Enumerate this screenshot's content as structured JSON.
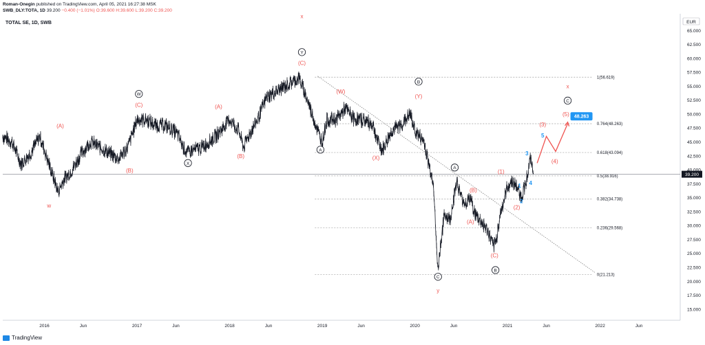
{
  "header": {
    "author": "Roman-Onegin",
    "published": "published on TradingView.com, April 05, 2021 16:27:38 MSK",
    "symbol_line": "SWB_DLY:TOTA, 1D",
    "last": "39.200",
    "change": "−0.400 (−1.01%)",
    "ohlc": "O:39.600 H:39.600 L:39.200 C:39.200"
  },
  "chart_title": "TOTAL SE, 1D, SWB",
  "logo_text": "TradingView",
  "chart_data": {
    "type": "line",
    "title": "TOTAL SE, 1D, SWB",
    "currency": "EUR",
    "last_price_label": "39.200",
    "last_price": 39.2,
    "y_range": [
      13.5,
      67.5
    ],
    "y_ticks": [
      "15.000",
      "17.500",
      "20.000",
      "22.500",
      "25.000",
      "27.500",
      "30.000",
      "32.500",
      "35.000",
      "37.500",
      "40.000",
      "42.500",
      "45.000",
      "47.500",
      "50.000",
      "52.500",
      "55.000",
      "57.500",
      "60.000",
      "62.500",
      "65.000"
    ],
    "x_range": [
      2015.55,
      2022.85
    ],
    "x_ticks": [
      {
        "label": "2016",
        "t": 2016.0
      },
      {
        "label": "Jun",
        "t": 2016.42
      },
      {
        "label": "2017",
        "t": 2017.0
      },
      {
        "label": "Jun",
        "t": 2017.42
      },
      {
        "label": "2018",
        "t": 2018.0
      },
      {
        "label": "Jun",
        "t": 2018.42
      },
      {
        "label": "2019",
        "t": 2019.0
      },
      {
        "label": "Jun",
        "t": 2019.42
      },
      {
        "label": "2020",
        "t": 2020.0
      },
      {
        "label": "Jun",
        "t": 2020.42
      },
      {
        "label": "2021",
        "t": 2021.0
      },
      {
        "label": "Jun",
        "t": 2021.42
      },
      {
        "label": "2022",
        "t": 2022.0
      },
      {
        "label": "Jun",
        "t": 2022.42
      }
    ],
    "price_path": [
      [
        2015.55,
        46
      ],
      [
        2015.65,
        45
      ],
      [
        2015.75,
        41
      ],
      [
        2015.85,
        43
      ],
      [
        2015.95,
        46
      ],
      [
        2016.05,
        41
      ],
      [
        2016.15,
        36
      ],
      [
        2016.2,
        38
      ],
      [
        2016.3,
        40
      ],
      [
        2016.4,
        43
      ],
      [
        2016.5,
        45
      ],
      [
        2016.6,
        44
      ],
      [
        2016.7,
        43
      ],
      [
        2016.8,
        42
      ],
      [
        2016.9,
        44
      ],
      [
        2017.0,
        49
      ],
      [
        2017.1,
        49
      ],
      [
        2017.2,
        48
      ],
      [
        2017.3,
        48
      ],
      [
        2017.4,
        47
      ],
      [
        2017.45,
        46
      ],
      [
        2017.5,
        44
      ],
      [
        2017.55,
        43
      ],
      [
        2017.6,
        43.5
      ],
      [
        2017.7,
        44
      ],
      [
        2017.85,
        46
      ],
      [
        2018.0,
        49
      ],
      [
        2018.1,
        47
      ],
      [
        2018.15,
        44
      ],
      [
        2018.2,
        46
      ],
      [
        2018.3,
        49
      ],
      [
        2018.4,
        53
      ],
      [
        2018.5,
        54
      ],
      [
        2018.6,
        55
      ],
      [
        2018.7,
        56
      ],
      [
        2018.75,
        56.5
      ],
      [
        2018.85,
        52
      ],
      [
        2018.95,
        47
      ],
      [
        2019.0,
        45
      ],
      [
        2019.05,
        49
      ],
      [
        2019.15,
        49
      ],
      [
        2019.25,
        51
      ],
      [
        2019.35,
        49
      ],
      [
        2019.45,
        49
      ],
      [
        2019.55,
        48
      ],
      [
        2019.6,
        45
      ],
      [
        2019.65,
        43.5
      ],
      [
        2019.75,
        47
      ],
      [
        2019.85,
        48
      ],
      [
        2019.95,
        50
      ],
      [
        2020.0,
        47
      ],
      [
        2020.1,
        45
      ],
      [
        2020.15,
        41
      ],
      [
        2020.2,
        38
      ],
      [
        2020.23,
        27
      ],
      [
        2020.25,
        22
      ],
      [
        2020.28,
        27
      ],
      [
        2020.32,
        32
      ],
      [
        2020.38,
        31
      ],
      [
        2020.45,
        38
      ],
      [
        2020.5,
        35
      ],
      [
        2020.55,
        34
      ],
      [
        2020.6,
        35
      ],
      [
        2020.65,
        32
      ],
      [
        2020.7,
        31
      ],
      [
        2020.75,
        30
      ],
      [
        2020.8,
        28.5
      ],
      [
        2020.85,
        26
      ],
      [
        2020.88,
        27.5
      ],
      [
        2020.92,
        32
      ],
      [
        2020.97,
        35
      ],
      [
        2021.0,
        37
      ],
      [
        2021.05,
        38
      ],
      [
        2021.1,
        37
      ],
      [
        2021.15,
        35
      ],
      [
        2021.2,
        38
      ],
      [
        2021.25,
        42
      ],
      [
        2021.28,
        39.2
      ]
    ],
    "fib_levels": [
      {
        "label": "1(56.619)",
        "value": 56.619
      },
      {
        "label": "0.764(48.263)",
        "value": 48.263
      },
      {
        "label": "0.618(43.094)",
        "value": 43.094
      },
      {
        "label": "0.5(38.916)",
        "value": 38.916
      },
      {
        "label": "0.382(34.738)",
        "value": 34.738
      },
      {
        "label": "0.236(29.568)",
        "value": 29.568
      },
      {
        "label": "0(21.213)",
        "value": 21.213
      }
    ],
    "price_level_line": 39.2,
    "trendline": [
      [
        2018.95,
        56.8
      ],
      [
        2021.95,
        21.5
      ]
    ],
    "projection": [
      [
        2021.32,
        41.2
      ],
      [
        2021.42,
        46.0
      ],
      [
        2021.52,
        43.3
      ],
      [
        2021.65,
        48.3
      ]
    ],
    "target_badge": "48.263",
    "wave_labels": [
      {
        "text": "(A)",
        "t": 2016.17,
        "p": 47.5,
        "color": "red"
      },
      {
        "text": "(B)",
        "t": 2016.92,
        "p": 39.5,
        "color": "red"
      },
      {
        "text": "w",
        "t": 2016.05,
        "p": 33.2,
        "color": "red"
      },
      {
        "text": "(C)",
        "t": 2017.02,
        "p": 51.3,
        "color": "red"
      },
      {
        "text": "W",
        "t": 2017.02,
        "p": 53.3,
        "color": "black",
        "circle": true
      },
      {
        "text": "X",
        "t": 2017.55,
        "p": 40.9,
        "color": "black",
        "circle": true
      },
      {
        "text": "(A)",
        "t": 2017.88,
        "p": 51.0,
        "color": "red"
      },
      {
        "text": "(B)",
        "t": 2018.12,
        "p": 42.1,
        "color": "red"
      },
      {
        "text": "x",
        "t": 2018.78,
        "p": 67.2,
        "color": "red"
      },
      {
        "text": "Y",
        "t": 2018.78,
        "p": 60.8,
        "color": "black",
        "circle": true
      },
      {
        "text": "(C)",
        "t": 2018.78,
        "p": 58.8,
        "color": "red"
      },
      {
        "text": "A",
        "t": 2018.98,
        "p": 43.3,
        "color": "black",
        "circle": true
      },
      {
        "text": "(W)",
        "t": 2019.2,
        "p": 53.7,
        "color": "red"
      },
      {
        "text": "(X)",
        "t": 2019.58,
        "p": 41.8,
        "color": "red"
      },
      {
        "text": "B",
        "t": 2020.04,
        "p": 55.5,
        "color": "black",
        "circle": true
      },
      {
        "text": "(Y)",
        "t": 2020.04,
        "p": 52.8,
        "color": "red"
      },
      {
        "text": "A",
        "t": 2020.43,
        "p": 40.1,
        "color": "black",
        "circle": true
      },
      {
        "text": "(B)",
        "t": 2020.63,
        "p": 36.0,
        "color": "red"
      },
      {
        "text": "(A)",
        "t": 2020.6,
        "p": 30.3,
        "color": "red"
      },
      {
        "text": "C",
        "t": 2020.25,
        "p": 20.5,
        "color": "black",
        "circle": true
      },
      {
        "text": "y",
        "t": 2020.25,
        "p": 18.0,
        "color": "red"
      },
      {
        "text": "(C)",
        "t": 2020.86,
        "p": 24.3,
        "color": "red"
      },
      {
        "text": "B",
        "t": 2020.87,
        "p": 21.7,
        "color": "black",
        "circle": true
      },
      {
        "text": "(1)",
        "t": 2020.93,
        "p": 39.3,
        "color": "red"
      },
      {
        "text": "(2)",
        "t": 2021.1,
        "p": 32.9,
        "color": "red"
      },
      {
        "text": "1",
        "t": 2021.13,
        "p": 36.8,
        "color": "blue"
      },
      {
        "text": "2",
        "t": 2021.15,
        "p": 34.0,
        "color": "blue"
      },
      {
        "text": "3",
        "t": 2021.21,
        "p": 42.6,
        "color": "blue"
      },
      {
        "text": "4",
        "t": 2021.25,
        "p": 37.3,
        "color": "blue"
      },
      {
        "text": "5",
        "t": 2021.38,
        "p": 45.8,
        "color": "blue"
      },
      {
        "text": "(3)",
        "t": 2021.38,
        "p": 47.8,
        "color": "red"
      },
      {
        "text": "(4)",
        "t": 2021.51,
        "p": 41.2,
        "color": "red"
      },
      {
        "text": "(5)",
        "t": 2021.63,
        "p": 49.6,
        "color": "red"
      },
      {
        "text": "C",
        "t": 2021.65,
        "p": 52.1,
        "color": "black",
        "circle": true
      },
      {
        "text": "x",
        "t": 2021.65,
        "p": 54.6,
        "color": "red"
      }
    ]
  }
}
